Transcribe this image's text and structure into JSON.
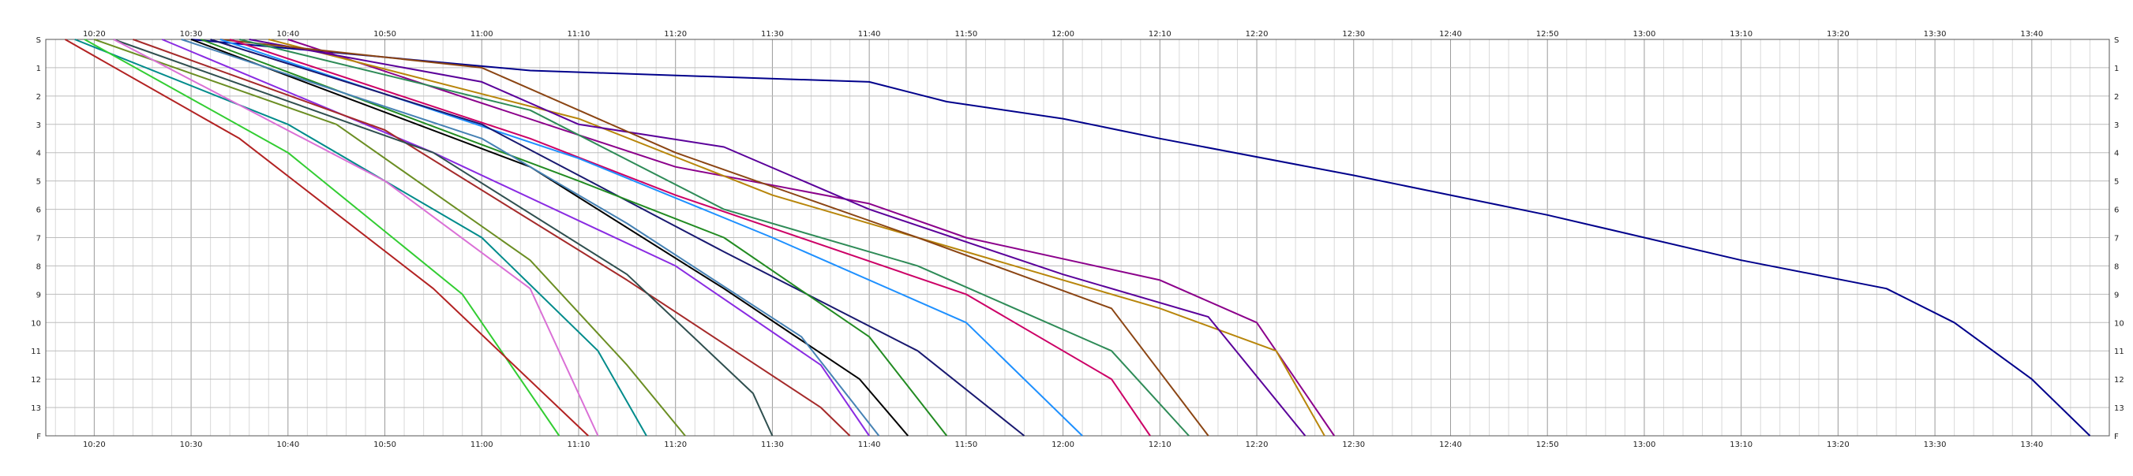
{
  "chart_data": {
    "type": "line",
    "x_start": "10:15",
    "x_end": "13:48",
    "x_tick_labels": [
      "10:20",
      "10:30",
      "10:40",
      "10:50",
      "11:00",
      "11:10",
      "11:20",
      "11:30",
      "11:40",
      "11:50",
      "12:00",
      "12:10",
      "12:20",
      "12:30",
      "12:40",
      "12:50",
      "13:00",
      "13:10",
      "13:20",
      "13:30",
      "13:40"
    ],
    "y_min": 0,
    "y_max": 14,
    "y_tick_labels": [
      {
        "value": 0,
        "label": "S"
      },
      {
        "value": 1,
        "label": "1"
      },
      {
        "value": 2,
        "label": "2"
      },
      {
        "value": 3,
        "label": "3"
      },
      {
        "value": 4,
        "label": "4"
      },
      {
        "value": 5,
        "label": "5"
      },
      {
        "value": 6,
        "label": "6"
      },
      {
        "value": 7,
        "label": "7"
      },
      {
        "value": 8,
        "label": "8"
      },
      {
        "value": 9,
        "label": "9"
      },
      {
        "value": 10,
        "label": "10"
      },
      {
        "value": 11,
        "label": "11"
      },
      {
        "value": 12,
        "label": "12"
      },
      {
        "value": 13,
        "label": "13"
      },
      {
        "value": 14,
        "label": "F"
      }
    ],
    "grid": true,
    "legend": "top-left",
    "series": [
      {
        "color": "#00008b",
        "points": [
          [
            "10:30",
            0
          ],
          [
            "11:05",
            1.1
          ],
          [
            "11:40",
            1.5
          ],
          [
            "11:48",
            2.2
          ],
          [
            "12:00",
            2.8
          ],
          [
            "12:10",
            3.5
          ],
          [
            "12:30",
            4.8
          ],
          [
            "12:50",
            6.2
          ],
          [
            "13:10",
            7.8
          ],
          [
            "13:25",
            8.8
          ],
          [
            "13:32",
            10.0
          ],
          [
            "13:40",
            12.0
          ],
          [
            "13:46",
            14
          ]
        ]
      },
      {
        "color": "#8b008b",
        "points": [
          [
            "10:40",
            0
          ],
          [
            "11:20",
            4.5
          ],
          [
            "11:40",
            5.8
          ],
          [
            "11:50",
            7.0
          ],
          [
            "12:10",
            8.5
          ],
          [
            "12:20",
            10.0
          ],
          [
            "12:28",
            14
          ]
        ]
      },
      {
        "color": "#b8860b",
        "points": [
          [
            "10:38",
            0
          ],
          [
            "11:10",
            2.8
          ],
          [
            "11:30",
            5.5
          ],
          [
            "11:50",
            7.5
          ],
          [
            "12:10",
            9.5
          ],
          [
            "12:22",
            11.0
          ],
          [
            "12:27",
            14
          ]
        ]
      },
      {
        "color": "#5a009a",
        "points": [
          [
            "10:36",
            0
          ],
          [
            "11:00",
            1.5
          ],
          [
            "11:10",
            3.0
          ],
          [
            "11:25",
            3.8
          ],
          [
            "11:40",
            6.0
          ],
          [
            "12:00",
            8.3
          ],
          [
            "12:15",
            9.8
          ],
          [
            "12:25",
            14
          ]
        ]
      },
      {
        "color": "#8b4513",
        "points": [
          [
            "10:33",
            0
          ],
          [
            "11:00",
            1.0
          ],
          [
            "11:20",
            4.0
          ],
          [
            "11:45",
            7.0
          ],
          [
            "12:05",
            9.5
          ],
          [
            "12:15",
            14
          ]
        ]
      },
      {
        "color": "#2e8b57",
        "points": [
          [
            "10:35",
            0
          ],
          [
            "11:05",
            2.5
          ],
          [
            "11:25",
            6.0
          ],
          [
            "11:45",
            8.0
          ],
          [
            "12:05",
            11.0
          ],
          [
            "12:13",
            14
          ]
        ]
      },
      {
        "color": "#cc0066",
        "points": [
          [
            "10:34",
            0
          ],
          [
            "11:05",
            3.5
          ],
          [
            "11:20",
            5.5
          ],
          [
            "11:50",
            9.0
          ],
          [
            "12:05",
            12.0
          ],
          [
            "12:09",
            14
          ]
        ]
      },
      {
        "color": "#1e90ff",
        "points": [
          [
            "10:33",
            0
          ],
          [
            "11:10",
            4.2
          ],
          [
            "11:30",
            7.0
          ],
          [
            "11:50",
            10.0
          ],
          [
            "12:02",
            14
          ]
        ]
      },
      {
        "color": "#191970",
        "points": [
          [
            "10:32",
            0
          ],
          [
            "11:00",
            3.0
          ],
          [
            "11:25",
            7.5
          ],
          [
            "11:45",
            11.0
          ],
          [
            "11:56",
            14
          ]
        ]
      },
      {
        "color": "#228b22",
        "points": [
          [
            "10:31",
            0
          ],
          [
            "11:10",
            5.0
          ],
          [
            "11:25",
            7.0
          ],
          [
            "11:40",
            10.5
          ],
          [
            "11:48",
            14
          ]
        ]
      },
      {
        "color": "#000000",
        "points": [
          [
            "10:30",
            0
          ],
          [
            "11:05",
            4.5
          ],
          [
            "11:25",
            8.8
          ],
          [
            "11:39",
            12.0
          ],
          [
            "11:44",
            14
          ]
        ]
      },
      {
        "color": "#4682b4",
        "points": [
          [
            "10:29",
            0
          ],
          [
            "11:00",
            3.5
          ],
          [
            "11:15",
            6.5
          ],
          [
            "11:33",
            10.5
          ],
          [
            "11:41",
            14
          ]
        ]
      },
      {
        "color": "#8a2be2",
        "points": [
          [
            "10:27",
            0
          ],
          [
            "10:55",
            4.0
          ],
          [
            "11:20",
            8.0
          ],
          [
            "11:35",
            11.5
          ],
          [
            "11:40",
            14
          ]
        ]
      },
      {
        "color": "#a52a2a",
        "points": [
          [
            "10:24",
            0
          ],
          [
            "10:50",
            3.2
          ],
          [
            "11:15",
            8.5
          ],
          [
            "11:35",
            13.0
          ],
          [
            "11:38",
            14
          ]
        ]
      },
      {
        "color": "#2f4f4f",
        "points": [
          [
            "10:22",
            0
          ],
          [
            "10:55",
            4.0
          ],
          [
            "11:15",
            8.3
          ],
          [
            "11:28",
            12.5
          ],
          [
            "11:30",
            14
          ]
        ]
      },
      {
        "color": "#6b8e23",
        "points": [
          [
            "10:20",
            0
          ],
          [
            "10:45",
            3.0
          ],
          [
            "11:05",
            7.8
          ],
          [
            "11:15",
            11.5
          ],
          [
            "11:21",
            14
          ]
        ]
      },
      {
        "color": "#008b8b",
        "points": [
          [
            "10:18",
            0
          ],
          [
            "10:40",
            3.0
          ],
          [
            "11:00",
            7.0
          ],
          [
            "11:12",
            11.0
          ],
          [
            "11:17",
            14
          ]
        ]
      },
      {
        "color": "#da70d6",
        "points": [
          [
            "10:22",
            0
          ],
          [
            "10:50",
            5.0
          ],
          [
            "11:05",
            8.8
          ],
          [
            "11:12",
            14
          ]
        ]
      },
      {
        "color": "#32cd32",
        "points": [
          [
            "10:19",
            0
          ],
          [
            "10:40",
            4.0
          ],
          [
            "10:58",
            9.0
          ],
          [
            "11:08",
            14
          ]
        ]
      },
      {
        "color": "#b22222",
        "points": [
          [
            "10:17",
            0
          ],
          [
            "10:35",
            3.5
          ],
          [
            "10:55",
            8.8
          ],
          [
            "11:11",
            14
          ]
        ]
      }
    ]
  }
}
